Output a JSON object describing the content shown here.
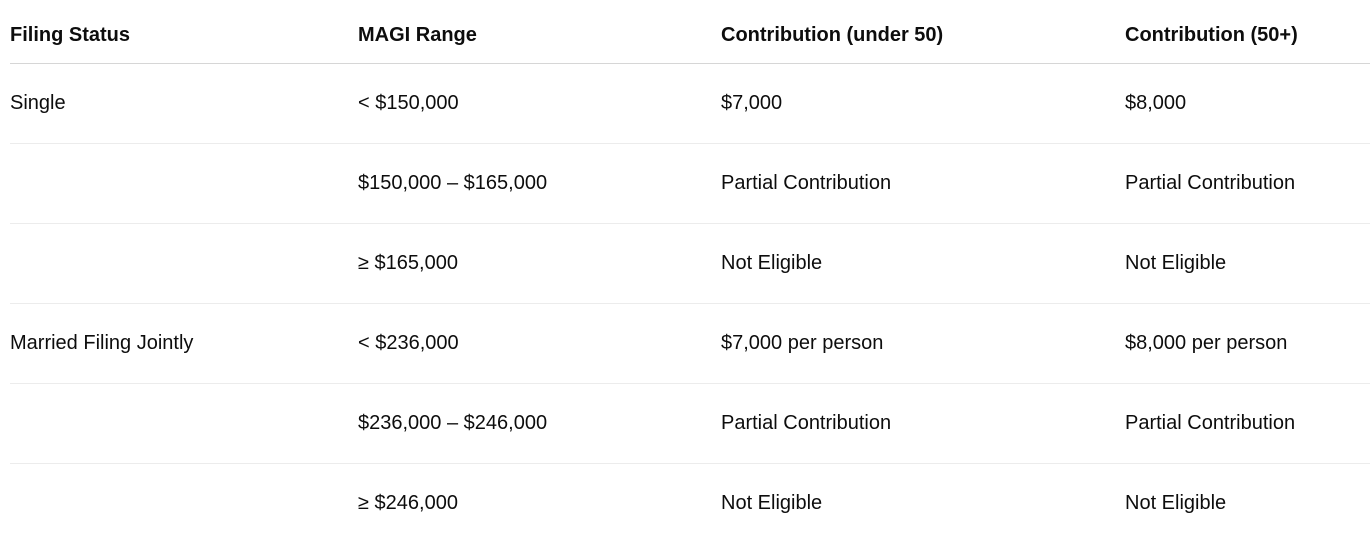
{
  "table": {
    "columns": [
      {
        "label": "Filing Status"
      },
      {
        "label": "MAGI Range"
      },
      {
        "label": "Contribution (under 50)"
      },
      {
        "label": "Contribution (50+)"
      }
    ],
    "rows": [
      {
        "cells": [
          "Single",
          "< $150,000",
          "$7,000",
          "$8,000"
        ]
      },
      {
        "cells": [
          "",
          "$150,000 – $165,000",
          "Partial Contribution",
          "Partial Contribution"
        ]
      },
      {
        "cells": [
          "",
          "≥ $165,000",
          "Not Eligible",
          "Not Eligible"
        ]
      },
      {
        "cells": [
          "Married Filing Jointly",
          "< $236,000",
          "$7,000 per person",
          "$8,000 per person"
        ]
      },
      {
        "cells": [
          "",
          "$236,000 – $246,000",
          "Partial Contribution",
          "Partial Contribution"
        ]
      },
      {
        "cells": [
          "",
          "≥ $246,000",
          "Not Eligible",
          "Not Eligible"
        ]
      }
    ]
  },
  "colors": {
    "text": "#0d0d0d",
    "header_border": "#d6d6d6",
    "row_border": "#ececec",
    "background": "#ffffff"
  }
}
